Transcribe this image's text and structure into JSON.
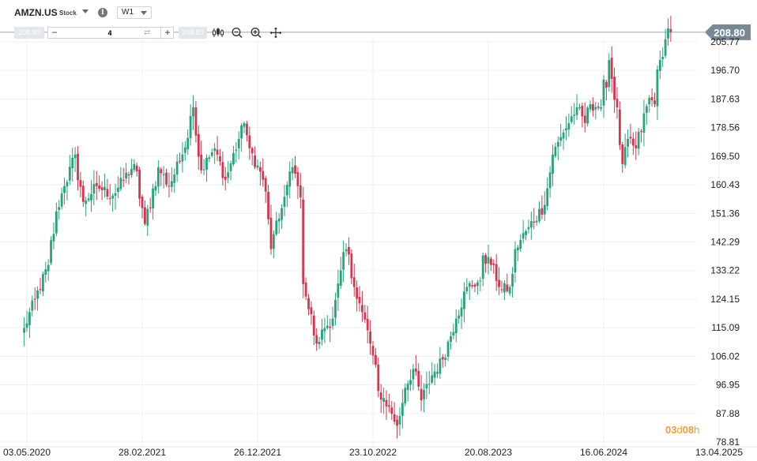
{
  "instrument": {
    "symbol": "AMZN.US",
    "type": "Stock",
    "timeframe": "W1"
  },
  "toolbar": {
    "sell_price": "208.80",
    "quantity": "4",
    "buy_price": "208.83",
    "minus_label": "−",
    "plus_label": "+",
    "swap_glyph": "⇄",
    "icons": [
      "candles-icon",
      "zoom-out-icon",
      "zoom-in-icon",
      "pan-move-icon"
    ]
  },
  "countdown": {
    "days": "03",
    "days_unit": "d",
    "hours": "08",
    "hours_unit": "h"
  },
  "colors": {
    "up": "#26a37a",
    "down": "#d9344d",
    "last_price_tag": "#7a8896",
    "countdown": "#f39a3c"
  },
  "chart_data": {
    "type": "candlestick",
    "price_axis": {
      "ticks": [
        "205.77",
        "196.70",
        "187.63",
        "178.56",
        "169.50",
        "160.43",
        "151.36",
        "142.29",
        "133.22",
        "124.15",
        "115.09",
        "106.02",
        "96.95",
        "87.88",
        "78.81"
      ],
      "range": [
        78.81,
        205.77
      ]
    },
    "time_axis": {
      "ticks": [
        "03.05.2020",
        "28.02.2021",
        "26.12.2021",
        "23.10.2022",
        "20.08.2023",
        "16.06.2024",
        "13.04.2025"
      ]
    },
    "last_price": "208.80",
    "close_anchors": [
      [
        "2020-04-26",
        115
      ],
      [
        "2020-05-24",
        124
      ],
      [
        "2020-06-28",
        135
      ],
      [
        "2020-07-19",
        152
      ],
      [
        "2020-08-09",
        160
      ],
      [
        "2020-09-06",
        170
      ],
      [
        "2020-09-27",
        155
      ],
      [
        "2020-11-01",
        160
      ],
      [
        "2020-12-13",
        157
      ],
      [
        "2021-02-07",
        167
      ],
      [
        "2021-03-07",
        148
      ],
      [
        "2021-04-11",
        166
      ],
      [
        "2021-05-09",
        160
      ],
      [
        "2021-06-13",
        170
      ],
      [
        "2021-07-11",
        185
      ],
      [
        "2021-08-01",
        165
      ],
      [
        "2021-09-05",
        172
      ],
      [
        "2021-10-03",
        162
      ],
      [
        "2021-11-07",
        175
      ],
      [
        "2021-11-21",
        180
      ],
      [
        "2021-12-05",
        172
      ],
      [
        "2022-01-09",
        162
      ],
      [
        "2022-01-30",
        140
      ],
      [
        "2022-02-27",
        153
      ],
      [
        "2022-03-27",
        166
      ],
      [
        "2022-04-10",
        160
      ],
      [
        "2022-05-01",
        125
      ],
      [
        "2022-05-29",
        110
      ],
      [
        "2022-06-19",
        115
      ],
      [
        "2022-07-10",
        118
      ],
      [
        "2022-08-14",
        140
      ],
      [
        "2022-09-04",
        128
      ],
      [
        "2022-09-25",
        120
      ],
      [
        "2022-10-16",
        110
      ],
      [
        "2022-11-06",
        95
      ],
      [
        "2022-12-04",
        90
      ],
      [
        "2022-12-25",
        84
      ],
      [
        "2023-01-15",
        96
      ],
      [
        "2023-02-05",
        102
      ],
      [
        "2023-02-26",
        92
      ],
      [
        "2023-03-26",
        100
      ],
      [
        "2023-04-23",
        105
      ],
      [
        "2023-05-28",
        118
      ],
      [
        "2023-06-25",
        128
      ],
      [
        "2023-07-30",
        130
      ],
      [
        "2023-08-06",
        138
      ],
      [
        "2023-08-27",
        135
      ],
      [
        "2023-09-24",
        127
      ],
      [
        "2023-10-15",
        128
      ],
      [
        "2023-10-29",
        140
      ],
      [
        "2023-12-03",
        147
      ],
      [
        "2024-01-14",
        154
      ],
      [
        "2024-02-04",
        170
      ],
      [
        "2024-03-03",
        177
      ],
      [
        "2024-04-07",
        185
      ],
      [
        "2024-04-28",
        180
      ],
      [
        "2024-05-12",
        186
      ],
      [
        "2024-06-09",
        185
      ],
      [
        "2024-06-30",
        200
      ],
      [
        "2024-07-21",
        185
      ],
      [
        "2024-08-04",
        167
      ],
      [
        "2024-08-18",
        175
      ],
      [
        "2024-09-08",
        172
      ],
      [
        "2024-10-13",
        188
      ],
      [
        "2024-10-27",
        186
      ],
      [
        "2024-11-03",
        197
      ],
      [
        "2024-11-17",
        201
      ],
      [
        "2024-12-01",
        210
      ],
      [
        "2024-12-08",
        208.8
      ]
    ]
  }
}
